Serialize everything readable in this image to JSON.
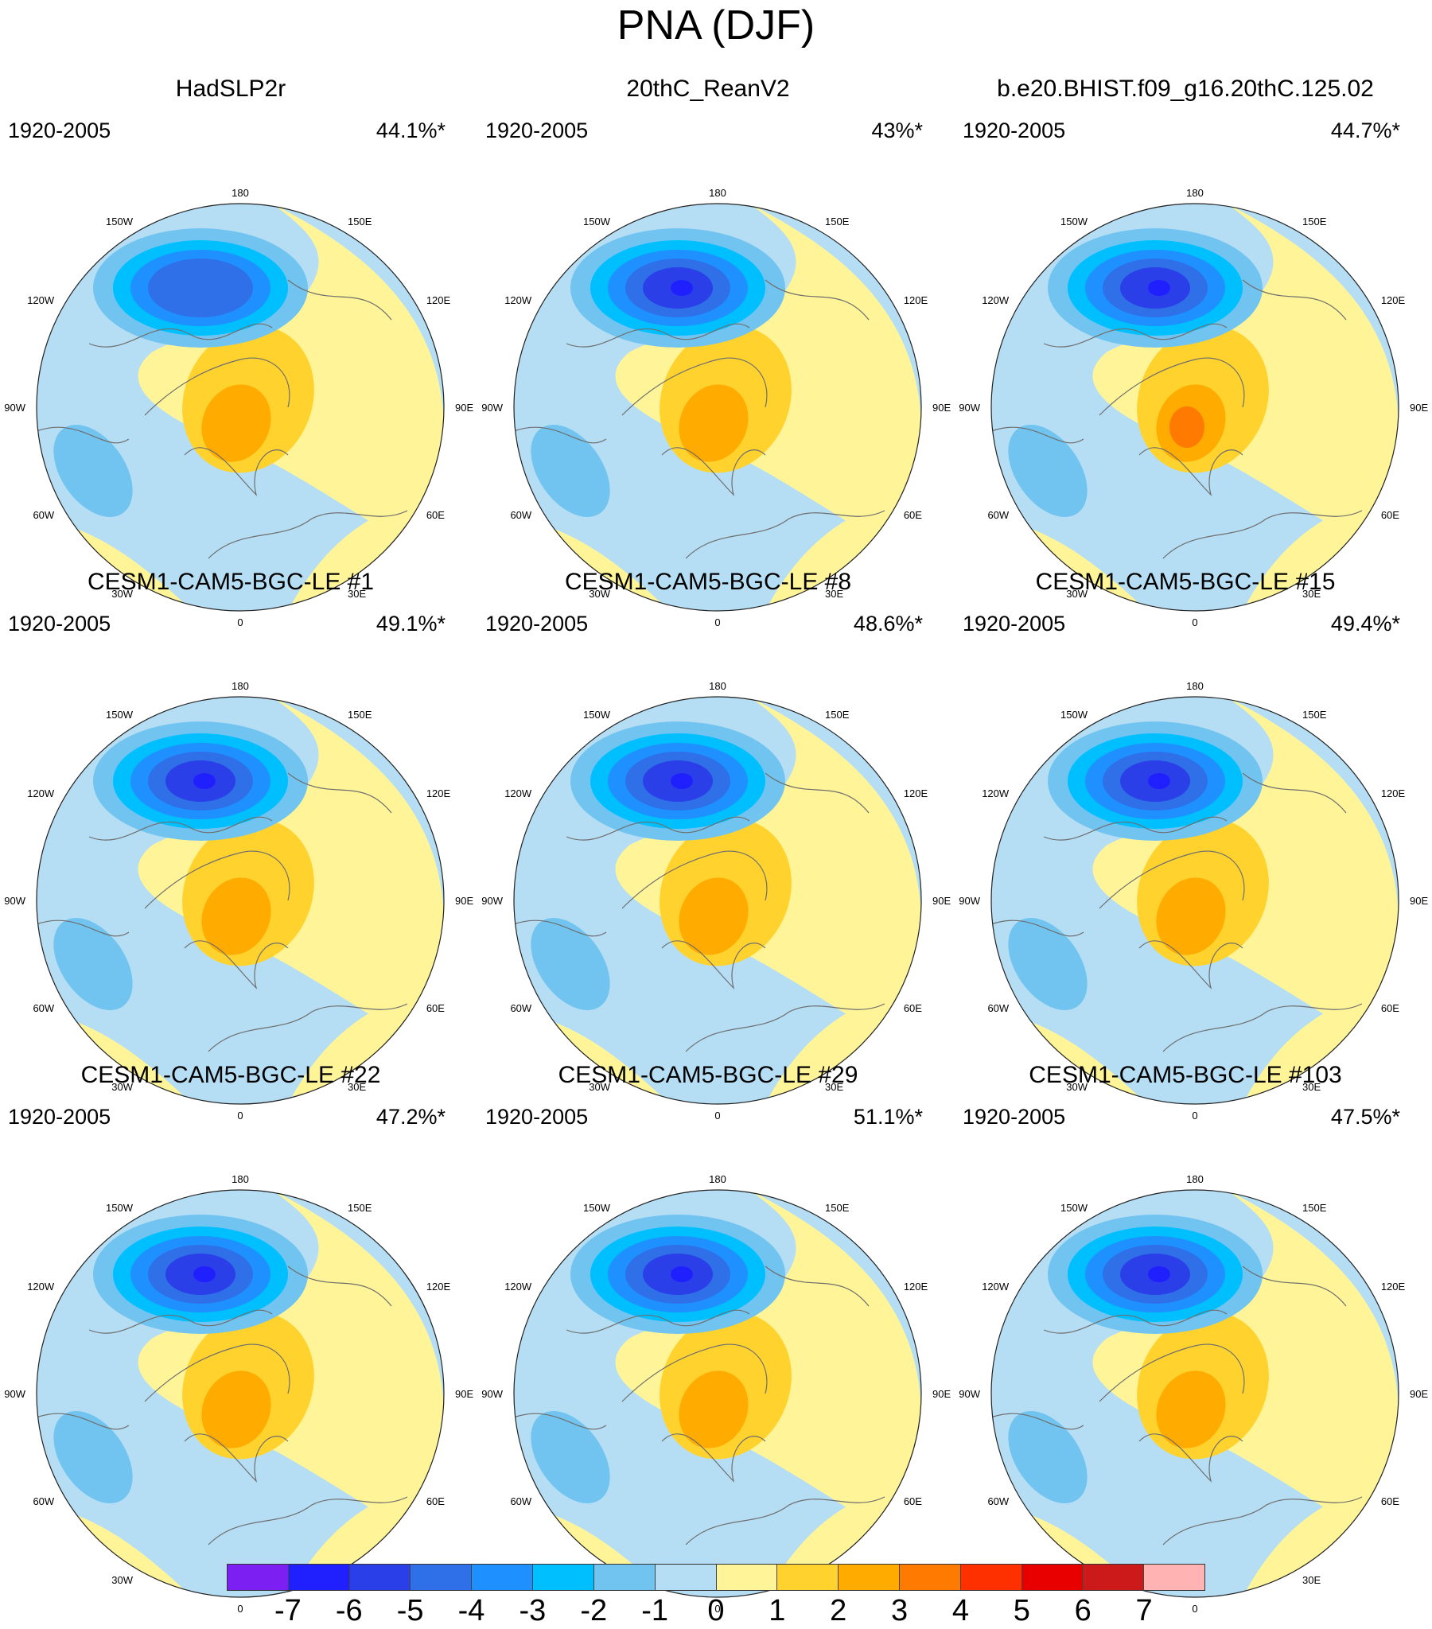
{
  "title": "PNA (DJF)",
  "longitude_labels": {
    "top": "180",
    "tl": "150W",
    "tr": "150E",
    "ul": "120W",
    "ur": "120E",
    "ml": "90W",
    "mr": "90E",
    "ll": "60W",
    "lr": "60E",
    "bl": "30W",
    "br": "30E",
    "bottom": "0"
  },
  "panels": [
    {
      "title": "HadSLP2r",
      "period": "1920-2005",
      "pct": "44.1%*",
      "low_strength": 2
    },
    {
      "title": "20thC_ReanV2",
      "period": "1920-2005",
      "pct": "43%*",
      "low_strength": 3
    },
    {
      "title": "b.e20.BHIST.f09_g16.20thC.125.02",
      "period": "1920-2005",
      "pct": "44.7%*",
      "low_strength": 3
    },
    {
      "title": "CESM1-CAM5-BGC-LE #1",
      "period": "1920-2005",
      "pct": "49.1%*",
      "low_strength": 3
    },
    {
      "title": "CESM1-CAM5-BGC-LE #8",
      "period": "1920-2005",
      "pct": "48.6%*",
      "low_strength": 3
    },
    {
      "title": "CESM1-CAM5-BGC-LE #15",
      "period": "1920-2005",
      "pct": "49.4%*",
      "low_strength": 3
    },
    {
      "title": "CESM1-CAM5-BGC-LE #22",
      "period": "1920-2005",
      "pct": "47.2%*",
      "low_strength": 3
    },
    {
      "title": "CESM1-CAM5-BGC-LE #29",
      "period": "1920-2005",
      "pct": "51.1%*",
      "low_strength": 3
    },
    {
      "title": "CESM1-CAM5-BGC-LE #103",
      "period": "1920-2005",
      "pct": "47.5%*",
      "low_strength": 3
    }
  ],
  "colorbar": {
    "labels": [
      "-7",
      "-6",
      "-5",
      "-4",
      "-3",
      "-2",
      "-1",
      "0",
      "1",
      "2",
      "3",
      "4",
      "5",
      "6",
      "7"
    ],
    "colors": [
      "#7b1ff2",
      "#2020ff",
      "#2a3fe8",
      "#2f70e8",
      "#1e90ff",
      "#00bfff",
      "#72c4f0",
      "#b5def4",
      "#fff598",
      "#ffd22e",
      "#ffab00",
      "#ff7a00",
      "#ff3000",
      "#e80000",
      "#cc1a1a",
      "#ffb3b3"
    ]
  }
}
